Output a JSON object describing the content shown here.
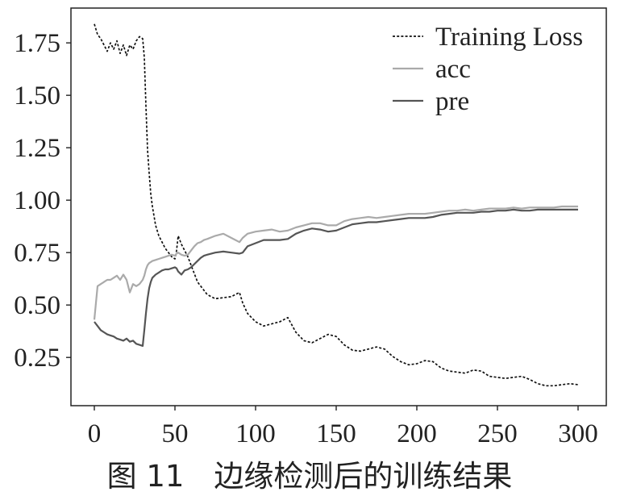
{
  "caption": "图 11　边缘检测后的训练结果",
  "chart_data": {
    "type": "line",
    "x": [
      0,
      2,
      4,
      6,
      8,
      10,
      12,
      14,
      16,
      18,
      20,
      22,
      24,
      26,
      28,
      30,
      31,
      32,
      33,
      34,
      35,
      36,
      38,
      40,
      42,
      44,
      46,
      48,
      50,
      51,
      52,
      54,
      56,
      58,
      60,
      62,
      64,
      66,
      68,
      70,
      75,
      80,
      85,
      90,
      92,
      95,
      100,
      105,
      110,
      115,
      120,
      125,
      130,
      135,
      140,
      145,
      150,
      155,
      160,
      165,
      170,
      175,
      180,
      185,
      190,
      195,
      200,
      205,
      210,
      215,
      220,
      225,
      230,
      235,
      240,
      245,
      250,
      255,
      260,
      265,
      270,
      275,
      280,
      285,
      290,
      295,
      300
    ],
    "series": [
      {
        "name": "Training Loss",
        "color": "#111111",
        "dashed": true,
        "values": [
          1.84,
          1.79,
          1.77,
          1.74,
          1.71,
          1.75,
          1.72,
          1.76,
          1.7,
          1.74,
          1.69,
          1.74,
          1.72,
          1.76,
          1.78,
          1.77,
          1.68,
          1.45,
          1.24,
          1.13,
          1.03,
          0.97,
          0.88,
          0.83,
          0.8,
          0.77,
          0.75,
          0.73,
          0.72,
          0.76,
          0.83,
          0.79,
          0.76,
          0.73,
          0.69,
          0.65,
          0.61,
          0.59,
          0.57,
          0.55,
          0.53,
          0.535,
          0.54,
          0.56,
          0.51,
          0.46,
          0.42,
          0.4,
          0.41,
          0.42,
          0.44,
          0.37,
          0.33,
          0.32,
          0.34,
          0.36,
          0.35,
          0.31,
          0.285,
          0.28,
          0.29,
          0.3,
          0.29,
          0.255,
          0.23,
          0.215,
          0.22,
          0.235,
          0.23,
          0.2,
          0.185,
          0.18,
          0.175,
          0.19,
          0.185,
          0.16,
          0.155,
          0.15,
          0.155,
          0.16,
          0.145,
          0.125,
          0.115,
          0.115,
          0.12,
          0.125,
          0.12
        ]
      },
      {
        "name": "acc",
        "color": "#aaaaaa",
        "dashed": false,
        "values": [
          0.43,
          0.59,
          0.6,
          0.61,
          0.62,
          0.62,
          0.63,
          0.64,
          0.62,
          0.645,
          0.62,
          0.56,
          0.6,
          0.59,
          0.6,
          0.62,
          0.64,
          0.67,
          0.69,
          0.7,
          0.705,
          0.71,
          0.715,
          0.72,
          0.725,
          0.73,
          0.735,
          0.74,
          0.735,
          0.745,
          0.75,
          0.74,
          0.735,
          0.74,
          0.76,
          0.78,
          0.795,
          0.8,
          0.81,
          0.815,
          0.83,
          0.84,
          0.82,
          0.8,
          0.82,
          0.84,
          0.85,
          0.855,
          0.86,
          0.85,
          0.855,
          0.87,
          0.88,
          0.89,
          0.89,
          0.88,
          0.88,
          0.9,
          0.91,
          0.915,
          0.92,
          0.915,
          0.92,
          0.925,
          0.93,
          0.935,
          0.935,
          0.935,
          0.94,
          0.945,
          0.95,
          0.95,
          0.955,
          0.95,
          0.955,
          0.96,
          0.96,
          0.96,
          0.965,
          0.96,
          0.965,
          0.965,
          0.965,
          0.965,
          0.97,
          0.97,
          0.97
        ]
      },
      {
        "name": "pre",
        "color": "#555555",
        "dashed": false,
        "values": [
          0.42,
          0.4,
          0.38,
          0.37,
          0.36,
          0.355,
          0.35,
          0.34,
          0.335,
          0.33,
          0.34,
          0.325,
          0.33,
          0.315,
          0.31,
          0.305,
          0.38,
          0.46,
          0.53,
          0.58,
          0.61,
          0.63,
          0.645,
          0.655,
          0.665,
          0.67,
          0.67,
          0.675,
          0.68,
          0.675,
          0.66,
          0.645,
          0.665,
          0.67,
          0.68,
          0.695,
          0.71,
          0.725,
          0.735,
          0.74,
          0.75,
          0.755,
          0.75,
          0.745,
          0.75,
          0.78,
          0.795,
          0.81,
          0.81,
          0.81,
          0.815,
          0.84,
          0.855,
          0.865,
          0.86,
          0.85,
          0.855,
          0.87,
          0.885,
          0.89,
          0.895,
          0.895,
          0.9,
          0.905,
          0.91,
          0.915,
          0.915,
          0.915,
          0.92,
          0.93,
          0.935,
          0.94,
          0.94,
          0.94,
          0.945,
          0.945,
          0.95,
          0.95,
          0.955,
          0.95,
          0.95,
          0.955,
          0.955,
          0.955,
          0.955,
          0.955,
          0.955
        ]
      }
    ],
    "xlim": [
      -14.5,
      317.5
    ],
    "ylim": [
      0.02,
      1.916
    ],
    "x_ticks": [
      0,
      50,
      100,
      150,
      200,
      250,
      300
    ],
    "x_tick_labels": [
      "0",
      "50",
      "100",
      "150",
      "200",
      "250",
      "300"
    ],
    "y_ticks": [
      0.25,
      0.5,
      0.75,
      1.0,
      1.25,
      1.5,
      1.75
    ],
    "y_tick_labels": [
      "0.25",
      "0.50",
      "0.75",
      "1.00",
      "1.25",
      "1.50",
      "1.75"
    ],
    "grid": false,
    "legend_position": "top-right"
  }
}
